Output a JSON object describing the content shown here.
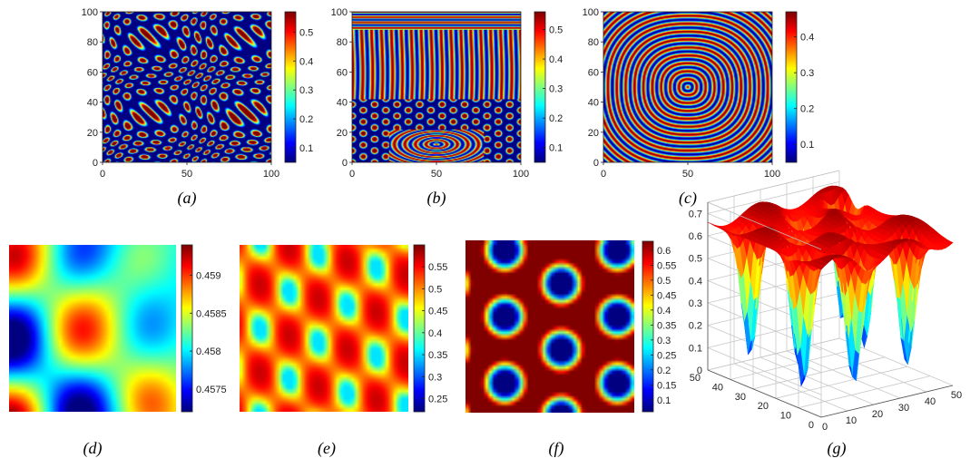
{
  "figure": {
    "panel_labels": [
      "(a)",
      "(b)",
      "(c)",
      "(d)",
      "(e)",
      "(f)",
      "(g)"
    ]
  },
  "chart_data": [
    {
      "id": "a",
      "type": "heatmap",
      "pattern": "hexagonal spots",
      "colormap": "jet",
      "xlim": [
        0,
        100
      ],
      "ylim": [
        0,
        100
      ],
      "xticks": [
        "0",
        "50",
        "100"
      ],
      "yticks": [
        "0",
        "20",
        "40",
        "60",
        "80",
        "100"
      ],
      "colorbar": {
        "range": [
          0.05,
          0.57
        ],
        "ticks": [
          "0.1",
          "0.2",
          "0.3",
          "0.4",
          "0.5"
        ]
      }
    },
    {
      "id": "b",
      "type": "heatmap",
      "pattern": "mixed stripes and spots",
      "colormap": "jet",
      "xlim": [
        0,
        100
      ],
      "ylim": [
        0,
        100
      ],
      "xticks": [
        "0",
        "50",
        "100"
      ],
      "yticks": [
        "0",
        "20",
        "40",
        "60",
        "80",
        "100"
      ],
      "colorbar": {
        "range": [
          0.05,
          0.56
        ],
        "ticks": [
          "0.1",
          "0.2",
          "0.3",
          "0.4",
          "0.5"
        ]
      }
    },
    {
      "id": "c",
      "type": "heatmap",
      "pattern": "concentric target rings",
      "colormap": "jet",
      "xlim": [
        0,
        100
      ],
      "ylim": [
        0,
        100
      ],
      "xticks": [
        "0",
        "50",
        "100"
      ],
      "yticks": [
        "0",
        "20",
        "40",
        "60",
        "80",
        "100"
      ],
      "colorbar": {
        "range": [
          0.05,
          0.47
        ],
        "ticks": [
          "0.1",
          "0.2",
          "0.3",
          "0.4"
        ]
      }
    },
    {
      "id": "d",
      "type": "heatmap",
      "pattern": "smooth spots",
      "colormap": "jet",
      "axes": "off",
      "colorbar": {
        "range": [
          0.4572,
          0.4594
        ],
        "ticks": [
          "0.4575",
          "0.458",
          "0.4585",
          "0.459"
        ]
      }
    },
    {
      "id": "e",
      "type": "heatmap",
      "pattern": "spots in columns",
      "colormap": "jet",
      "axes": "off",
      "colorbar": {
        "range": [
          0.22,
          0.6
        ],
        "ticks": [
          "0.25",
          "0.3",
          "0.35",
          "0.4",
          "0.45",
          "0.5",
          "0.55"
        ]
      }
    },
    {
      "id": "f",
      "type": "heatmap",
      "pattern": "hexagonal holes",
      "colormap": "jet",
      "axes": "off",
      "colorbar": {
        "range": [
          0.06,
          0.63
        ],
        "ticks": [
          "0.1",
          "0.15",
          "0.2",
          "0.25",
          "0.3",
          "0.35",
          "0.4",
          "0.45",
          "0.5",
          "0.55",
          "0.6"
        ]
      }
    },
    {
      "id": "g",
      "type": "surface",
      "colormap": "jet",
      "zticks": [
        "0",
        "0.1",
        "0.2",
        "0.3",
        "0.4",
        "0.5",
        "0.6",
        "0.7"
      ],
      "xticks": [
        "0",
        "10",
        "20",
        "30",
        "40",
        "50"
      ],
      "yticks": [
        "0",
        "10",
        "20",
        "30",
        "40",
        "50"
      ],
      "xlim": [
        0,
        50
      ],
      "ylim": [
        0,
        50
      ],
      "zlim": [
        0,
        0.75
      ]
    }
  ]
}
